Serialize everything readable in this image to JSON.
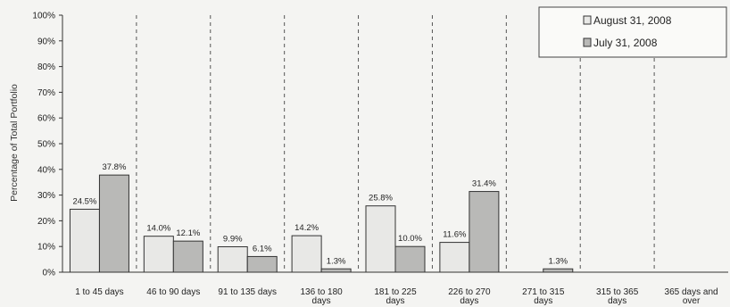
{
  "chart_data": {
    "type": "bar",
    "ylabel": "Percentage of Total Portfolio",
    "ylim": [
      0,
      100
    ],
    "ytick_labels": [
      "0%",
      "10%",
      "20%",
      "30%",
      "40%",
      "50%",
      "60%",
      "70%",
      "80%",
      "90%",
      "100%"
    ],
    "categories": [
      [
        "1 to 45 days"
      ],
      [
        "46 to 90 days"
      ],
      [
        "91 to 135 days"
      ],
      [
        "136 to 180",
        "days"
      ],
      [
        "181 to 225",
        "days"
      ],
      [
        "226 to 270",
        "days"
      ],
      [
        "271 to 315",
        "days"
      ],
      [
        "315 to 365",
        "days"
      ],
      [
        "365 days and",
        "over"
      ]
    ],
    "series": [
      {
        "name": "August 31, 2008",
        "color": "#e8e8e6",
        "values": [
          24.5,
          14.0,
          9.9,
          14.2,
          25.8,
          11.6,
          null,
          null,
          null
        ],
        "labels": [
          "24.5%",
          "14.0%",
          "9.9%",
          "14.2%",
          "25.8%",
          "11.6%",
          "",
          "",
          ""
        ]
      },
      {
        "name": "July 31, 2008",
        "color": "#b9b9b7",
        "values": [
          37.8,
          12.1,
          6.1,
          1.3,
          10.0,
          31.4,
          1.3,
          null,
          null
        ],
        "labels": [
          "37.8%",
          "12.1%",
          "6.1%",
          "1.3%",
          "10.0%",
          "31.4%",
          "1.3%",
          "",
          ""
        ]
      }
    ],
    "legend": {
      "position": "top-right",
      "entries": [
        "August 31, 2008",
        "July 31, 2008"
      ]
    },
    "grid": false,
    "separators": "dashed vertical lines between categories"
  }
}
